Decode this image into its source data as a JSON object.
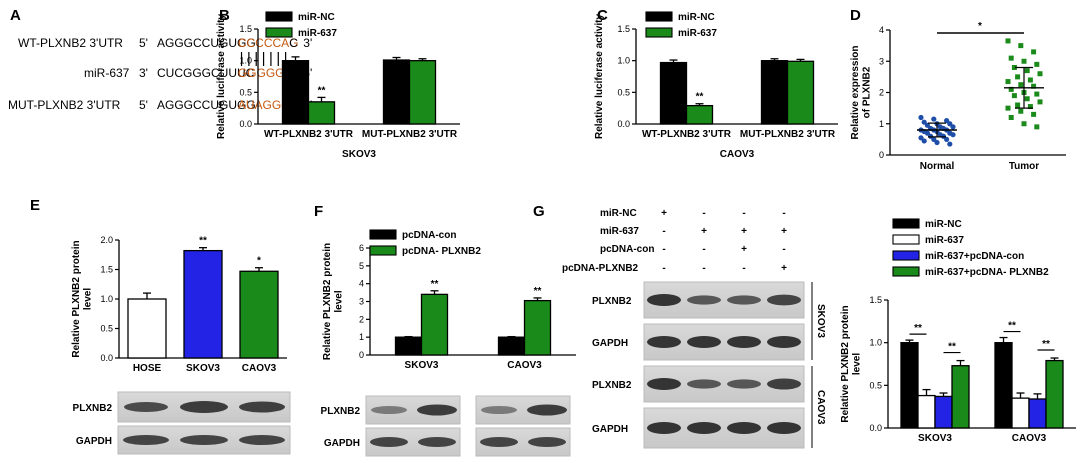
{
  "panels": {
    "A": {
      "letter": "A",
      "rows": [
        {
          "name": "WT-PLXNB2 3'UTR",
          "p5": "5'",
          "pre": "AGGGCCUGUGG",
          "hl": "CCCCCAG",
          "post": "C",
          "p3": "3'"
        },
        {
          "name": "miR-637",
          "p5": "3'",
          "pre": "CUCGGGCUUUC",
          "hl": "GGGGGUC",
          "post": "A",
          "p3": "5'"
        },
        {
          "name": "MUT-PLXNB2 3'UTR",
          "p5": "5'",
          "pre": "AGGGCCUGUGG",
          "hl": "AUAGGCA",
          "post": "C",
          "p3": "3'"
        }
      ],
      "highlight_color": "#c55a11"
    },
    "E": {
      "letter": "E",
      "blot_rows": [
        "PLXNB2",
        "GAPDH"
      ]
    },
    "F": {
      "letter": "F",
      "blot_rows": [
        "PLXNB2",
        "GAPDH"
      ]
    },
    "G": {
      "letter": "G",
      "treat_rows": [
        {
          "label": "miR-NC",
          "signs": [
            "+",
            "-",
            "-",
            "-"
          ]
        },
        {
          "label": "miR-637",
          "signs": [
            "-",
            "+",
            "+",
            "+"
          ]
        },
        {
          "label": "pcDNA-con",
          "signs": [
            "-",
            "-",
            "+",
            "-"
          ]
        },
        {
          "label": "pcDNA-PLXNB2",
          "signs": [
            "-",
            "-",
            "-",
            "+"
          ]
        }
      ],
      "blot_rows": [
        "PLXNB2",
        "GAPDH",
        "PLXNB2",
        "GAPDH"
      ],
      "cell_tags": [
        "SKOV3",
        "CAOV3"
      ]
    }
  },
  "chart_data": [
    {
      "id": "B",
      "type": "bar",
      "categories": [
        "WT-PLXNB2 3'UTR",
        "MUT-PLXNB2 3'UTR"
      ],
      "series": [
        {
          "name": "miR-NC",
          "values": [
            1.0,
            1.01
          ],
          "errors": [
            0.06,
            0.04
          ],
          "color": "#000000"
        },
        {
          "name": "miR-637",
          "values": [
            0.35,
            1.0
          ],
          "errors": [
            0.07,
            0.03
          ],
          "color": "#1a8a1a"
        }
      ],
      "annotations": [
        "**",
        ""
      ],
      "title": "SKOV3",
      "ylabel": "Relative luciferase activity",
      "ylim": [
        0,
        1.5
      ],
      "yticks": [
        "0.0",
        "0.5",
        "1.0",
        "1.5"
      ],
      "legend": "top"
    },
    {
      "id": "C",
      "type": "bar",
      "categories": [
        "WT-PLXNB2 3'UTR",
        "MUT-PLXNB2 3'UTR"
      ],
      "series": [
        {
          "name": "miR-NC",
          "values": [
            0.97,
            1.0
          ],
          "errors": [
            0.04,
            0.03
          ],
          "color": "#000000"
        },
        {
          "name": "miR-637",
          "values": [
            0.29,
            0.99
          ],
          "errors": [
            0.03,
            0.03
          ],
          "color": "#1a8a1a"
        }
      ],
      "annotations": [
        "**",
        ""
      ],
      "title": "CAOV3",
      "ylabel": "Relative luciferase activity",
      "ylim": [
        0,
        1.5
      ],
      "yticks": [
        "0.0",
        "0.5",
        "1.0",
        "1.5"
      ],
      "legend": "top"
    },
    {
      "id": "D",
      "type": "scatter",
      "categories": [
        "Normal",
        "Tumor"
      ],
      "groups": [
        {
          "name": "Normal",
          "color": "#1f4ea8",
          "mean": 0.8,
          "sd": 0.22,
          "values": [
            1.2,
            1.15,
            1.1,
            1.05,
            1.0,
            1.0,
            0.95,
            0.9,
            0.9,
            0.85,
            0.85,
            0.8,
            0.8,
            0.8,
            0.75,
            0.75,
            0.7,
            0.7,
            0.65,
            0.65,
            0.6,
            0.6,
            0.55,
            0.5,
            0.5,
            0.45,
            0.4,
            0.35
          ]
        },
        {
          "name": "Tumor",
          "color": "#1a8a1a",
          "mean": 2.15,
          "sd": 0.65,
          "values": [
            3.65,
            3.5,
            3.3,
            3.1,
            3.0,
            2.9,
            2.8,
            2.7,
            2.6,
            2.5,
            2.4,
            2.35,
            2.25,
            2.2,
            2.1,
            2.0,
            1.95,
            1.9,
            1.8,
            1.7,
            1.6,
            1.55,
            1.5,
            1.4,
            1.3,
            1.2,
            1.0,
            0.9
          ]
        }
      ],
      "significance": "*",
      "ylabel": "Relative expression\nof PLXNB2",
      "ylim": [
        0,
        4
      ],
      "yticks": [
        "0",
        "1",
        "2",
        "3",
        "4"
      ]
    },
    {
      "id": "E",
      "type": "bar",
      "categories": [
        "HOSE",
        "SKOV3",
        "CAOV3"
      ],
      "values": [
        1.0,
        1.82,
        1.47
      ],
      "errors": [
        0.1,
        0.05,
        0.06
      ],
      "colors": [
        "#ffffff",
        "#2323e6",
        "#1a8a1a"
      ],
      "annotations": [
        "",
        "**",
        "*"
      ],
      "ylabel": "Relative PLXNB2 protein\nlevel",
      "ylim": [
        0,
        2
      ],
      "yticks": [
        "0.0",
        "0.5",
        "1.0",
        "1.5",
        "2.0"
      ]
    },
    {
      "id": "F",
      "type": "bar",
      "categories": [
        "SKOV3",
        "CAOV3"
      ],
      "series": [
        {
          "name": "pcDNA-con",
          "values": [
            1.0,
            1.0
          ],
          "errors": [
            0.03,
            0.03
          ],
          "color": "#000000"
        },
        {
          "name": "pcDNA- PLXNB2",
          "values": [
            3.4,
            3.05
          ],
          "errors": [
            0.2,
            0.15
          ],
          "color": "#1a8a1a"
        }
      ],
      "annotations": [
        "**",
        "**"
      ],
      "ylabel": "Relative PLXNB2 protein\nlevel",
      "ylim": [
        0,
        6
      ],
      "yticks": [
        "0",
        "1",
        "2",
        "3",
        "4",
        "5",
        "6"
      ],
      "legend": "top"
    },
    {
      "id": "G",
      "type": "bar",
      "categories": [
        "SKOV3",
        "CAOV3"
      ],
      "series": [
        {
          "name": "miR-NC",
          "values": [
            1.0,
            1.0
          ],
          "errors": [
            0.03,
            0.06
          ],
          "color": "#000000"
        },
        {
          "name": "miR-637",
          "values": [
            0.38,
            0.35
          ],
          "errors": [
            0.07,
            0.06
          ],
          "color": "#ffffff"
        },
        {
          "name": "miR-637+pcDNA-con",
          "values": [
            0.37,
            0.34
          ],
          "errors": [
            0.04,
            0.06
          ],
          "color": "#2323e6"
        },
        {
          "name": "miR-637+pcDNA- PLXNB2",
          "values": [
            0.73,
            0.79
          ],
          "errors": [
            0.06,
            0.03
          ],
          "color": "#1a8a1a"
        }
      ],
      "annotations": [
        "**",
        "**"
      ],
      "ylabel": "Relative PLXNB2 protein\nlevel",
      "ylim": [
        0,
        1.5
      ],
      "yticks": [
        "0.0",
        "0.5",
        "1.0",
        "1.5"
      ],
      "legend": "top"
    }
  ]
}
